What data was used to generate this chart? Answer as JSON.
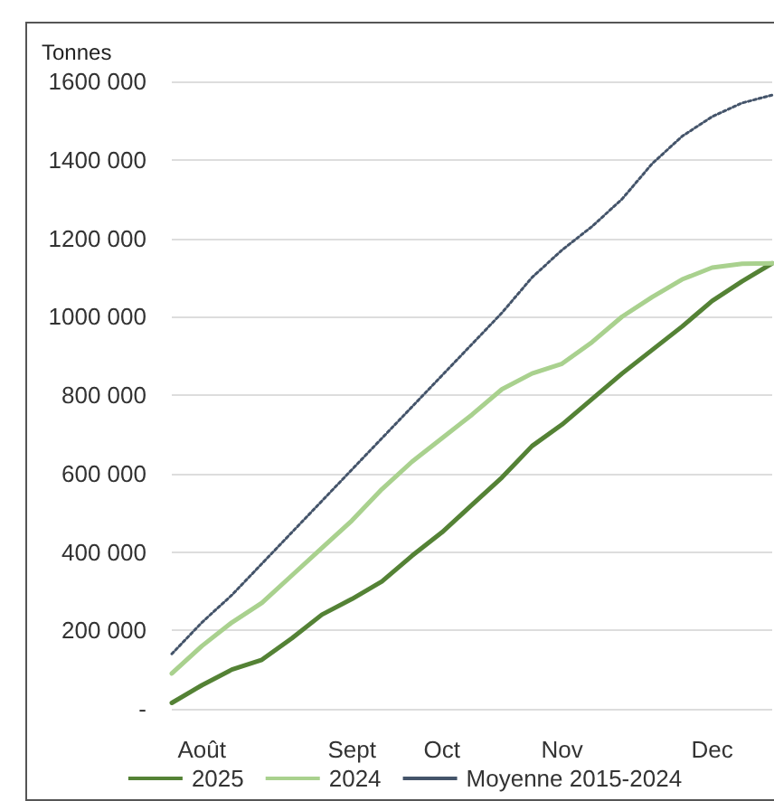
{
  "chart_data": {
    "type": "line",
    "ylabel": "Tonnes",
    "categories": [
      null,
      "Août",
      null,
      null,
      null,
      null,
      "Sept",
      null,
      null,
      "Oct",
      null,
      null,
      null,
      "Nov",
      null,
      null,
      null,
      null,
      "Dec",
      null,
      null
    ],
    "series": [
      {
        "name": "2025",
        "color": "#548235",
        "line_style": "solid",
        "values": [
          15000,
          60000,
          100000,
          125000,
          180000,
          240000,
          280000,
          325000,
          390000,
          450000,
          520000,
          590000,
          670000,
          725000,
          790000,
          855000,
          915000,
          975000,
          1040000,
          1090000,
          1136000
        ]
      },
      {
        "name": "2024",
        "color": "#a9d18e",
        "line_style": "solid",
        "values": [
          90000,
          160000,
          220000,
          270000,
          340000,
          410000,
          480000,
          560000,
          630000,
          690000,
          750000,
          815000,
          855000,
          880000,
          935000,
          1000000,
          1050000,
          1095000,
          1125000,
          1135000,
          1136000
        ]
      },
      {
        "name": "Moyenne 2015-2024",
        "color": "#44546a",
        "line_style": "dotted",
        "values": [
          140000,
          220000,
          290000,
          370000,
          450000,
          530000,
          610000,
          690000,
          770000,
          850000,
          930000,
          1010000,
          1100000,
          1170000,
          1230000,
          1300000,
          1390000,
          1460000,
          1510000,
          1545000,
          1565000
        ]
      }
    ],
    "ylim": [
      0,
      1600000
    ],
    "yticks": [
      {
        "value": 0,
        "label": "-"
      },
      {
        "value": 200000,
        "label": "200 000"
      },
      {
        "value": 400000,
        "label": "400 000"
      },
      {
        "value": 600000,
        "label": "600 000"
      },
      {
        "value": 800000,
        "label": "800 000"
      },
      {
        "value": 1000000,
        "label": "1000 000"
      },
      {
        "value": 1200000,
        "label": "1200 000"
      },
      {
        "value": 1400000,
        "label": "1400 000"
      },
      {
        "value": 1600000,
        "label": "1600 000"
      }
    ],
    "grid": "y",
    "legend": "bottom",
    "marker": "none"
  }
}
